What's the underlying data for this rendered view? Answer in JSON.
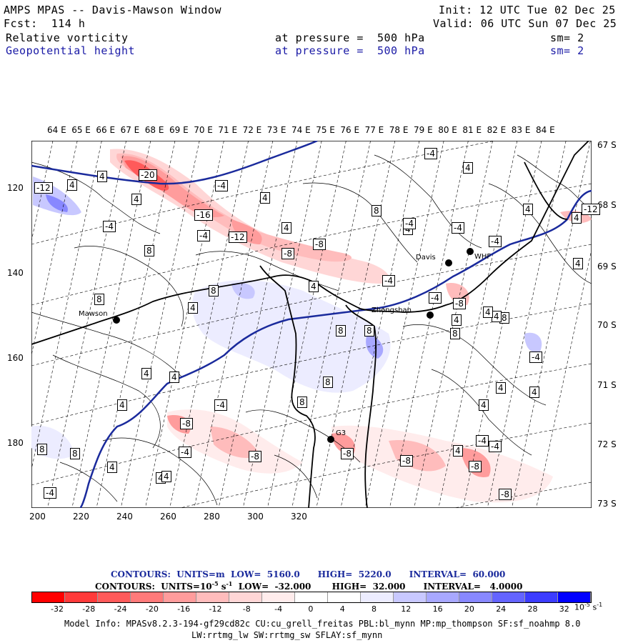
{
  "header": {
    "title": "AMPS MPAS -- Davis-Mawson Window",
    "fcst": "Fcst:  114 h",
    "init": "Init: 12 UTC Tue 02 Dec 25",
    "valid": "Valid: 06 UTC Sun 07 Dec 25",
    "field1_name": "Relative vorticity",
    "field1_level": "at pressure =  500 hPa",
    "field1_sm": "sm= 2",
    "field2_name": "Geopotential height",
    "field2_level": "at pressure =  500 hPa",
    "field2_sm": "sm= 2"
  },
  "axes": {
    "lon_labels": [
      "64 E",
      "65 E",
      "66 E",
      "67 E",
      "68 E",
      "69 E",
      "70 E",
      "71 E",
      "72 E",
      "73 E",
      "74 E",
      "75 E",
      "76 E",
      "77 E",
      "78 E",
      "79 E",
      "80 E",
      "81 E",
      "82 E",
      "83 E",
      "84 E"
    ],
    "lat_labels": [
      "67 S",
      "68 S",
      "69 S",
      "70 S",
      "71 S",
      "72 S",
      "73 S"
    ],
    "y_ticks": [
      "120",
      "140",
      "160",
      "180"
    ],
    "x_ticks": [
      "200",
      "220",
      "240",
      "260",
      "280",
      "300",
      "320"
    ]
  },
  "stations": [
    {
      "name": "Davis"
    },
    {
      "name": "WHF"
    },
    {
      "name": "Mawson"
    },
    {
      "name": "Zhongshan"
    },
    {
      "name": "G3"
    }
  ],
  "contour_labels": [
    "-12",
    "4",
    "4",
    "-20",
    "4",
    "-4",
    "4",
    "-16",
    "-4",
    "-12",
    "-4",
    "8",
    "4",
    "8",
    "-8",
    "-8",
    "4",
    "-4",
    "8",
    "4",
    "4",
    "-4",
    "8",
    "8",
    "4",
    "-4",
    "-8",
    "4",
    "8",
    "8",
    "4",
    "4",
    "4",
    "4",
    "-8",
    "4",
    "-4",
    "8",
    "-4",
    "-8",
    "4",
    "8",
    "8",
    "-8",
    "4",
    "-4",
    "-8",
    "-8",
    "4",
    "-4",
    "-8",
    "-4",
    "4",
    "-12",
    "-4",
    "4",
    "4",
    "8",
    "4",
    "-4",
    "-4",
    "8",
    "4",
    "4",
    "4",
    "-4"
  ],
  "info": {
    "contours_height": "CONTOURS:  UNITS=m  LOW=  5160.0      HIGH=  5220.0      INTERVAL=  60.000",
    "contours_vort_prefix": "CONTOURS:  UNITS=10",
    "contours_vort_exp": "-5",
    "contours_vort_mid": " s",
    "contours_vort_exp2": "-1",
    "contours_vort_rest": "  LOW=  -32.000       HIGH=  32.000      INTERVAL=   4.0000"
  },
  "colorbar": {
    "labels": [
      "-32",
      "-28",
      "-24",
      "-20",
      "-16",
      "-12",
      "-8",
      "-4",
      "0",
      "4",
      "8",
      "12",
      "16",
      "20",
      "24",
      "28",
      "32"
    ],
    "unit_prefix": "10",
    "unit_exp": "-5",
    "unit_s": "s",
    "unit_exp2": "-1",
    "colors": [
      "#ff0000",
      "#ff3a3a",
      "#ff5a5a",
      "#ff7a7a",
      "#ff9c9c",
      "#ffbcbc",
      "#ffd6d6",
      "#ffecec",
      "#ffffff",
      "#ffffff",
      "#ececff",
      "#c8c8ff",
      "#a8a8ff",
      "#8888ff",
      "#6464ff",
      "#3c3cff",
      "#0000ff"
    ]
  },
  "model_info": {
    "line1": "Model Info: MPASv8.2.3-194-gf29cd82c CU:cu_grell_freitas PBL:bl_mynn MP:mp_thompson SF:sf_noahmp 8.0",
    "line2": "LW:rrtmg_lw SW:rrtmg_sw SFLAY:sf_mynn"
  }
}
